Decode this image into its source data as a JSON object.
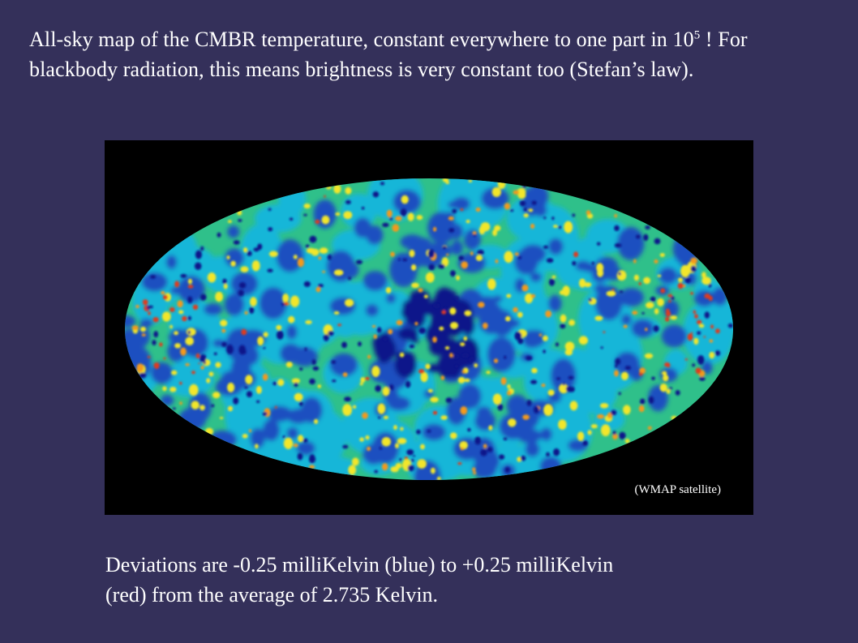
{
  "slide": {
    "intro_part1": "All-sky map of the CMBR temperature, constant everywhere to one part in 10",
    "intro_superscript": "5",
    "intro_part2": " !  For blackbody radiation, this means brightness is very constant too (Stefan’s law).",
    "map_caption": "(WMAP satellite)",
    "deviation_line1": "Deviations are -0.25 milliKelvin (blue) to +0.25 milliKelvin",
    "deviation_line2": "(red) from the average of 2.735 Kelvin."
  },
  "map": {
    "colors": {
      "background": "#000000",
      "base_green": "#2fc08a",
      "cyan": "#17b6d8",
      "blue": "#1a4fc0",
      "deep_blue": "#10168a",
      "yellow": "#f2e62a",
      "orange": "#f39a1f",
      "red": "#e03a1c"
    }
  }
}
